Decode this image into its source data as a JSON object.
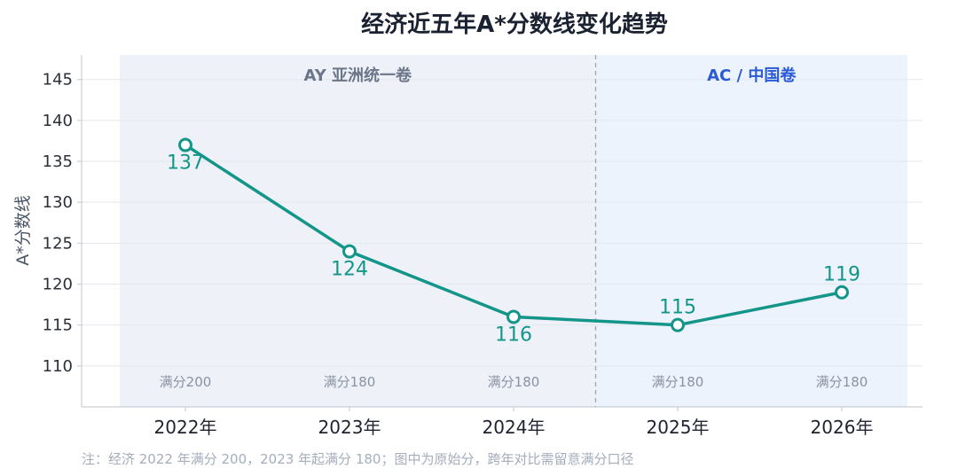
{
  "chart_data": {
    "type": "line",
    "title": "经济近五年A*分数线变化趋势",
    "ylabel": "A*分数线",
    "xlabel": "",
    "categories": [
      "2022年",
      "2023年",
      "2024年",
      "2025年",
      "2026年"
    ],
    "values": [
      137,
      124,
      116,
      115,
      119
    ],
    "value_labels": [
      "137",
      "124",
      "116",
      "115",
      "119"
    ],
    "ylim": [
      105,
      148
    ],
    "yticks": [
      110,
      115,
      120,
      125,
      130,
      135,
      140,
      145
    ],
    "ytick_labels": [
      "110",
      "115",
      "120",
      "125",
      "130",
      "135",
      "140",
      "145"
    ],
    "grid": true,
    "line_color": "#14958a",
    "regions": [
      {
        "label": "AY 亚洲统一卷",
        "start": 0,
        "end": 2,
        "color": "#eef2f8",
        "label_color": "#6b7689"
      },
      {
        "label": "AC / 中国卷",
        "start": 3,
        "end": 4,
        "color": "#edf3fc",
        "label_color": "#2a5bd7"
      }
    ],
    "full_marks": [
      "满分200",
      "满分180",
      "满分180",
      "满分180",
      "满分180"
    ],
    "note": "注：经济 2022 年满分 200，2023 年起满分 180；图中为原始分，跨年对比需留意满分口径"
  }
}
